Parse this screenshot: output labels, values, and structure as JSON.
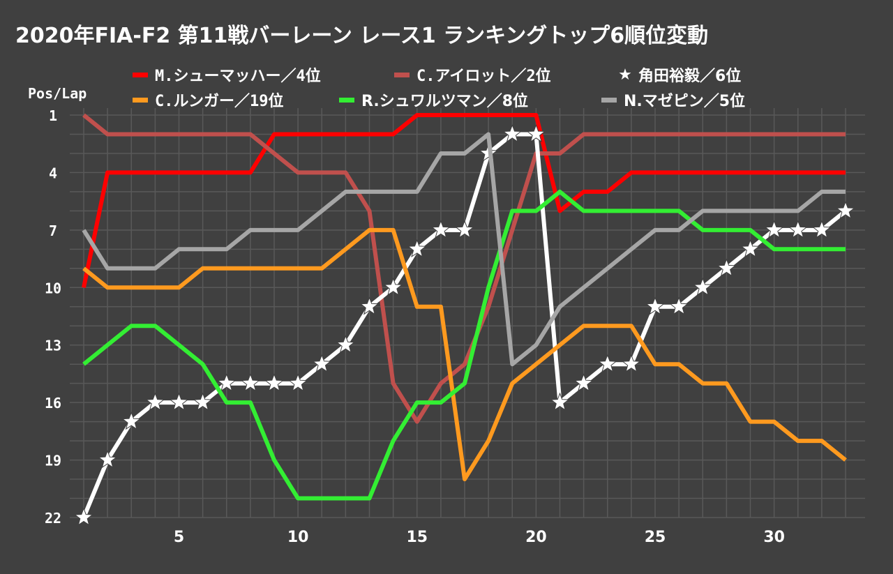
{
  "chart_data": {
    "type": "line",
    "title": "2020年FIA-F2 第11戦バーレーン レース1 ランキングトップ6順位変動",
    "ylabel": "Pos/Lap",
    "xlabel": "",
    "xlim": [
      1,
      33
    ],
    "ylim": [
      22,
      1
    ],
    "y_inverted": true,
    "grid": true,
    "xticks": [
      5,
      10,
      15,
      20,
      25,
      30
    ],
    "yticks": [
      1,
      4,
      7,
      10,
      13,
      16,
      19,
      22
    ],
    "legend_position": "top",
    "x": [
      1,
      2,
      3,
      4,
      5,
      6,
      7,
      8,
      9,
      10,
      11,
      12,
      13,
      14,
      15,
      16,
      17,
      18,
      19,
      20,
      21,
      22,
      23,
      24,
      25,
      26,
      27,
      28,
      29,
      30,
      31,
      32,
      33
    ],
    "series": [
      {
        "name": "M.シューマッハー／4位",
        "color": "#ff0000",
        "marker": "none",
        "values": [
          10,
          4,
          4,
          4,
          4,
          4,
          4,
          4,
          2,
          2,
          2,
          2,
          2,
          2,
          1,
          1,
          1,
          1,
          1,
          1,
          6,
          5,
          5,
          4,
          4,
          4,
          4,
          4,
          4,
          4,
          4,
          4,
          4
        ]
      },
      {
        "name": "C.アイロット／2位",
        "color": "#c0504d",
        "marker": "none",
        "values": [
          1,
          2,
          2,
          2,
          2,
          2,
          2,
          2,
          3,
          4,
          4,
          4,
          6,
          15,
          17,
          15,
          14,
          11,
          7,
          3,
          3,
          2,
          2,
          2,
          2,
          2,
          2,
          2,
          2,
          2,
          2,
          2,
          2
        ]
      },
      {
        "name": "角田裕毅／6位",
        "color": "#ffffff",
        "marker": "star",
        "values": [
          22,
          19,
          17,
          16,
          16,
          16,
          15,
          15,
          15,
          15,
          14,
          13,
          11,
          10,
          8,
          7,
          7,
          3,
          2,
          2,
          16,
          15,
          14,
          14,
          11,
          11,
          10,
          9,
          8,
          7,
          7,
          7,
          6
        ]
      },
      {
        "name": "C.ルンガー／19位",
        "color": "#ff9a1f",
        "marker": "none",
        "values": [
          9,
          10,
          10,
          10,
          10,
          9,
          9,
          9,
          9,
          9,
          9,
          8,
          7,
          7,
          11,
          11,
          20,
          18,
          15,
          14,
          13,
          12,
          12,
          12,
          14,
          14,
          15,
          15,
          17,
          17,
          18,
          18,
          19
        ]
      },
      {
        "name": "R.シュワルツマン／8位",
        "color": "#33ee33",
        "marker": "none",
        "values": [
          14,
          13,
          12,
          12,
          13,
          14,
          16,
          16,
          19,
          21,
          21,
          21,
          21,
          18,
          16,
          16,
          15,
          10,
          6,
          6,
          5,
          6,
          6,
          6,
          6,
          6,
          7,
          7,
          7,
          8,
          8,
          8,
          8
        ]
      },
      {
        "name": "N.マゼピン／5位",
        "color": "#a6a6a6",
        "marker": "none",
        "values": [
          7,
          9,
          9,
          9,
          8,
          8,
          8,
          7,
          7,
          7,
          6,
          5,
          5,
          5,
          5,
          3,
          3,
          2,
          14,
          13,
          11,
          10,
          9,
          8,
          7,
          7,
          6,
          6,
          6,
          6,
          6,
          5,
          5
        ]
      }
    ]
  },
  "legend_markers": {
    "line": "line-swatch",
    "star": "★"
  }
}
